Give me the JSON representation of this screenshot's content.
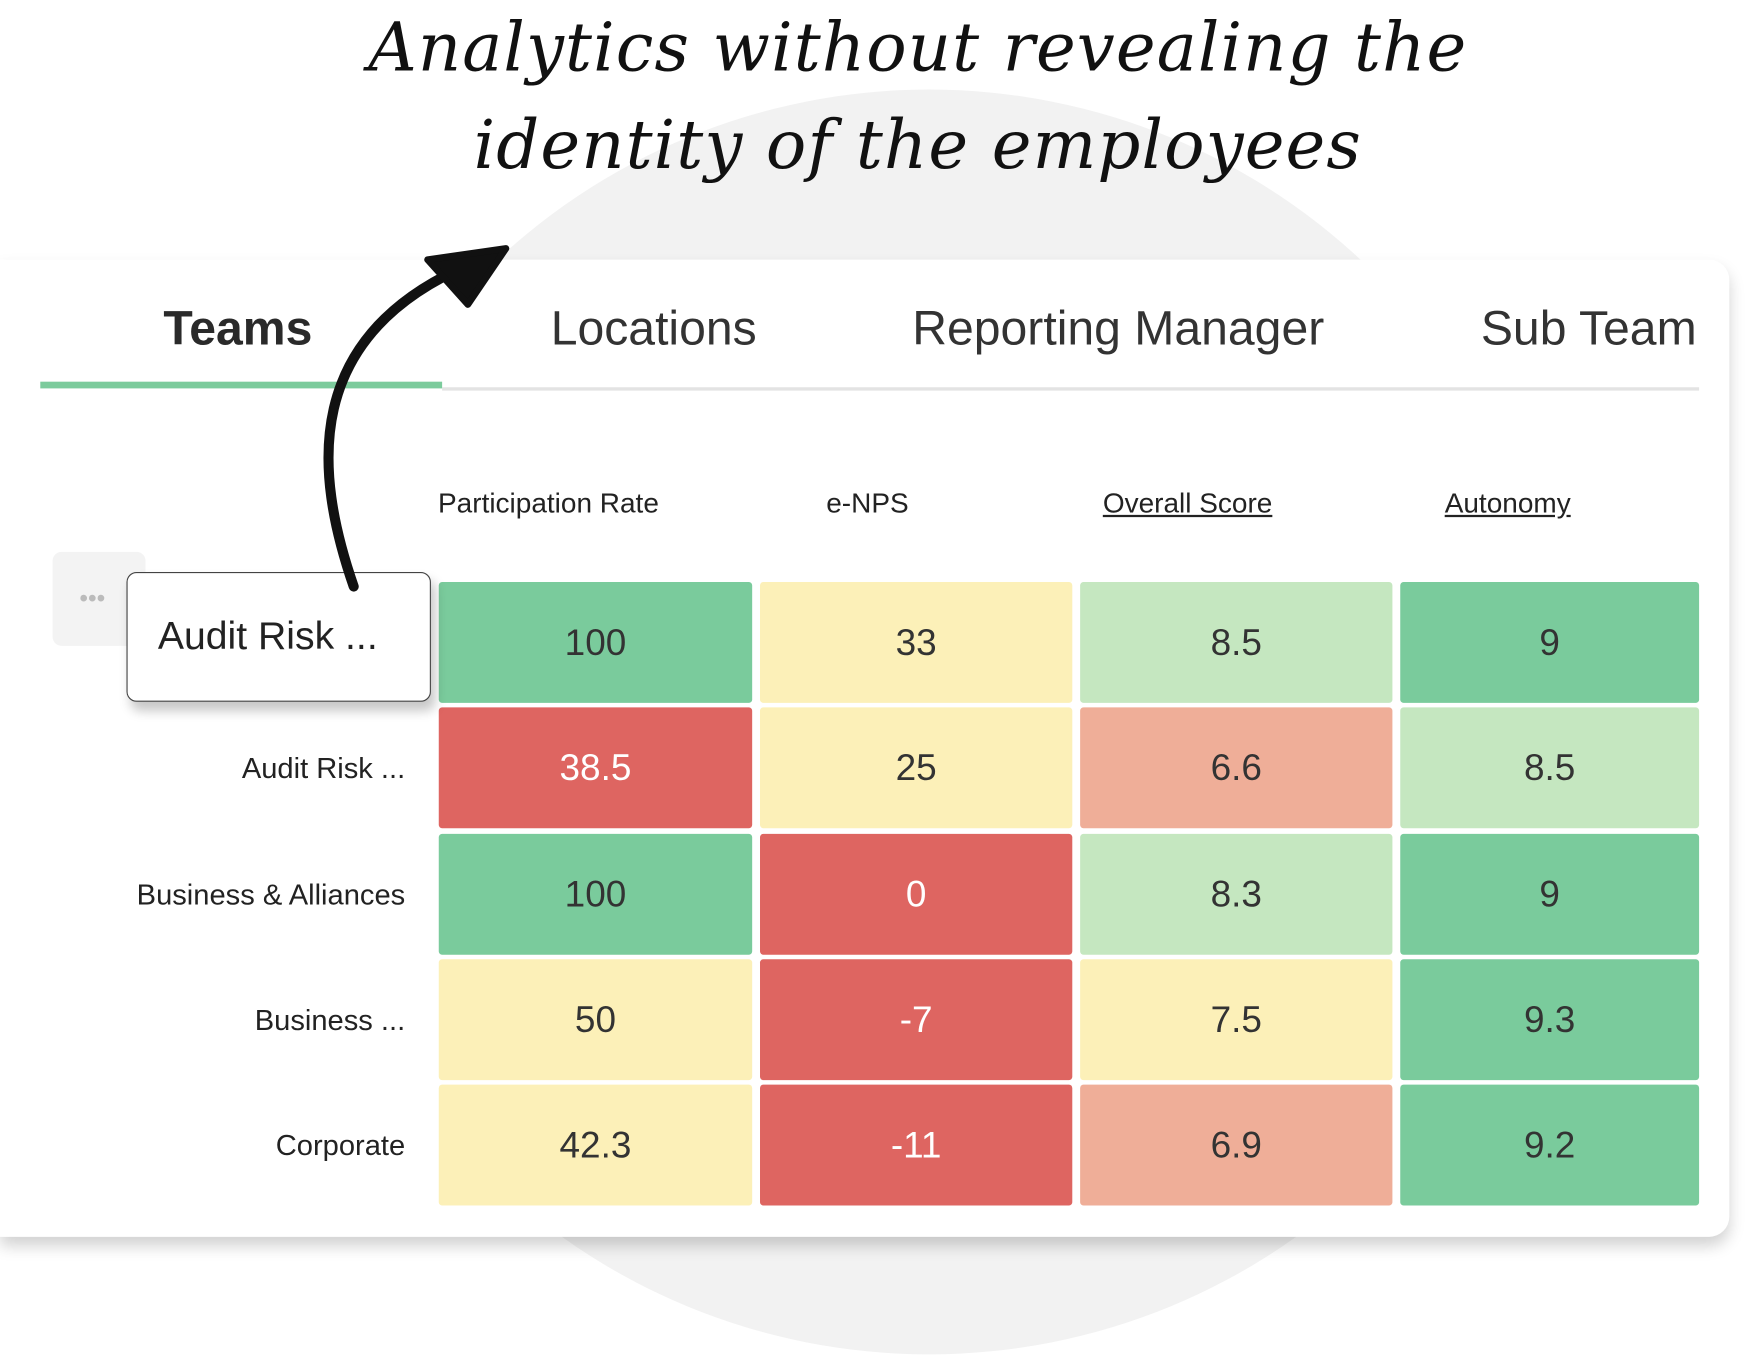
{
  "headline": {
    "line1": "Analytics without revealing the",
    "line2": "identity of the employees"
  },
  "tabs": [
    {
      "label": "Teams",
      "active": true
    },
    {
      "label": "Locations",
      "active": false
    },
    {
      "label": "Reporting Manager",
      "active": false
    },
    {
      "label": "Sub Team",
      "active": false
    }
  ],
  "columns": [
    "Participation Rate",
    "e-NPS",
    "Overall Score",
    "Autonomy"
  ],
  "hover_label": "Audit Risk ...",
  "more_icon": "ellipsis-icon",
  "rows": [
    {
      "label": "Audit Risk ...",
      "values": [
        "100",
        "33",
        "8.5",
        "9"
      ],
      "colors": [
        "#7acb9c",
        "#fcf0b8",
        "#c5e7c0",
        "#7acb9c"
      ]
    },
    {
      "label": "Audit Risk ...",
      "values": [
        "38.5",
        "25",
        "6.6",
        "8.5"
      ],
      "colors": [
        "#de6561",
        "#fcf0b8",
        "#efae98",
        "#c5e7c0"
      ]
    },
    {
      "label": "Business & Alliances",
      "values": [
        "100",
        "0",
        "8.3",
        "9"
      ],
      "colors": [
        "#7acb9c",
        "#de6561",
        "#c5e7c0",
        "#7acb9c"
      ]
    },
    {
      "label": "Business ...",
      "values": [
        "50",
        "-7",
        "7.5",
        "9.3"
      ],
      "colors": [
        "#fcf0b8",
        "#de6561",
        "#fcf0b8",
        "#7acb9c"
      ]
    },
    {
      "label": "Corporate",
      "values": [
        "42.3",
        "-11",
        "6.9",
        "9.2"
      ],
      "colors": [
        "#fcf0b8",
        "#de6561",
        "#efae98",
        "#7acb9c"
      ]
    }
  ],
  "accent": "#7ccb9c"
}
